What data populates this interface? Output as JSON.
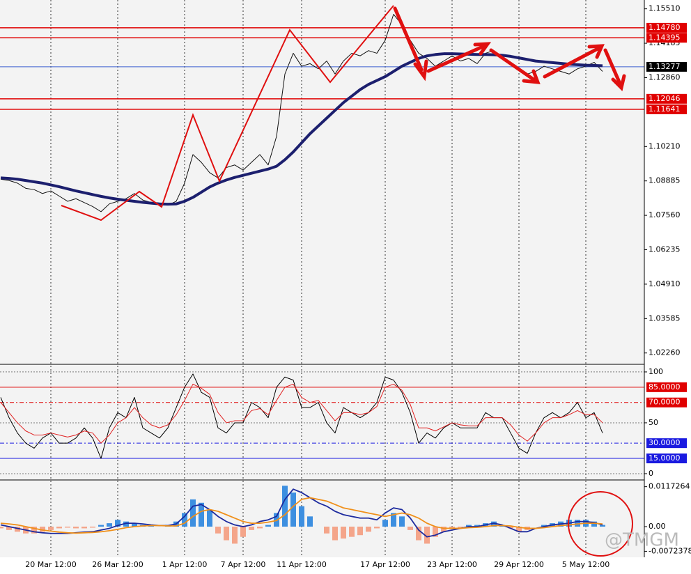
{
  "chart_data": [
    {
      "type": "line",
      "categories": [
        null,
        null,
        null,
        null,
        null,
        null,
        "20 Mar 12:00",
        null,
        null,
        null,
        null,
        null,
        null,
        null,
        "26 Mar 12:00",
        null,
        null,
        null,
        null,
        null,
        null,
        null,
        "1 Apr 12:00",
        null,
        null,
        null,
        null,
        null,
        null,
        "7 Apr 12:00",
        null,
        null,
        null,
        null,
        null,
        null,
        "11 Apr 12:00",
        null,
        null,
        null,
        null,
        null,
        null,
        null,
        null,
        null,
        "17 Apr 12:00",
        null,
        null,
        null,
        null,
        null,
        null,
        null,
        "23 Apr 12:00",
        null,
        null,
        null,
        null,
        null,
        null,
        null,
        "29 Apr 12:00",
        null,
        null,
        null,
        null,
        null,
        null,
        null,
        "5 May 12:00",
        null,
        null
      ],
      "series": [
        {
          "color": "#111111",
          "values": [
            1.0895,
            1.089,
            1.088,
            1.086,
            1.0855,
            1.084,
            1.085,
            1.083,
            1.081,
            1.082,
            1.0805,
            1.079,
            1.077,
            1.08,
            1.081,
            1.082,
            1.084,
            1.0815,
            1.0805,
            1.08,
            1.0795,
            1.081,
            1.088,
            1.099,
            1.096,
            1.092,
            1.09,
            1.094,
            1.095,
            1.093,
            1.096,
            1.099,
            1.095,
            1.106,
            1.13,
            1.138,
            1.133,
            1.134,
            1.132,
            1.135,
            1.13,
            1.135,
            1.138,
            1.137,
            1.139,
            1.138,
            1.143,
            1.153,
            1.149,
            1.143,
            1.138,
            1.136,
            1.133,
            1.135,
            1.137,
            1.135,
            1.136,
            1.134,
            1.138,
            1.139,
            1.136,
            1.134,
            1.132,
            1.13,
            1.131,
            1.133,
            1.132,
            1.131,
            1.13,
            1.132,
            1.133,
            1.1345,
            1.131
          ]
        },
        {
          "color": "#1c1f6e",
          "values": [
            1.09,
            1.0898,
            1.0895,
            1.089,
            1.0885,
            1.088,
            1.0873,
            1.0866,
            1.0858,
            1.085,
            1.0843,
            1.0836,
            1.0829,
            1.0823,
            1.0818,
            1.0814,
            1.081,
            1.0806,
            1.0803,
            1.08,
            1.0799,
            1.08,
            1.081,
            1.0825,
            1.0845,
            1.0865,
            1.088,
            1.0892,
            1.0902,
            1.091,
            1.0918,
            1.0926,
            1.0934,
            1.0945,
            1.097,
            1.1,
            1.1035,
            1.107,
            1.11,
            1.113,
            1.116,
            1.119,
            1.1215,
            1.124,
            1.126,
            1.1275,
            1.129,
            1.131,
            1.133,
            1.1345,
            1.136,
            1.137,
            1.1375,
            1.1378,
            1.1378,
            1.1377,
            1.1376,
            1.1375,
            1.1375,
            1.1374,
            1.1372,
            1.1368,
            1.1362,
            1.1356,
            1.135,
            1.1347,
            1.1344,
            1.1341,
            1.1338,
            1.1336,
            1.1334,
            1.1333,
            1.1332
          ]
        }
      ],
      "ylim": [
        1.0185,
        1.1585
      ],
      "yticks": [
        {
          "value": 1.1551,
          "label": "1.15510"
        },
        {
          "value": 1.14185,
          "label": "1.14185"
        },
        {
          "value": 1.1286,
          "label": "1.12860"
        },
        {
          "value": 1.1021,
          "label": "1.10210"
        },
        {
          "value": 1.08885,
          "label": "1.08885"
        },
        {
          "value": 1.0756,
          "label": "1.07560"
        },
        {
          "value": 1.06235,
          "label": "1.06235"
        },
        {
          "value": 1.0491,
          "label": "1.04910"
        },
        {
          "value": 1.03585,
          "label": "1.03585"
        },
        {
          "value": 1.0226,
          "label": "1.02260"
        }
      ],
      "levels": [
        {
          "value": 1.1478,
          "label": "1.14780",
          "color": "#e00000",
          "label_color": "#e00000"
        },
        {
          "value": 1.14395,
          "label": "1.14395",
          "color": "#e00000",
          "label_color": "#e00000"
        },
        {
          "value": 1.13277,
          "label": "1.13277",
          "color": "#3a5fd0",
          "label_color": "#000000"
        },
        {
          "value": 1.12046,
          "label": "1.12046",
          "color": "#e00000",
          "label_color": "#e00000"
        },
        {
          "value": 1.11641,
          "label": "1.11641",
          "color": "#e00000",
          "label_color": "#e00000"
        }
      ],
      "grid": true
    },
    {
      "type": "line",
      "series": [
        {
          "color": "#000000",
          "values": [
            75,
            55,
            40,
            30,
            25,
            35,
            40,
            30,
            30,
            35,
            45,
            35,
            15,
            45,
            60,
            55,
            75,
            45,
            40,
            35,
            45,
            65,
            85,
            98,
            80,
            75,
            45,
            40,
            50,
            50,
            70,
            65,
            55,
            85,
            95,
            92,
            65,
            65,
            70,
            50,
            40,
            65,
            60,
            55,
            60,
            70,
            95,
            92,
            80,
            60,
            30,
            40,
            35,
            45,
            50,
            45,
            45,
            45,
            60,
            55,
            55,
            40,
            25,
            20,
            40,
            55,
            60,
            55,
            60,
            70,
            55,
            60,
            40
          ]
        },
        {
          "color": "#e02020",
          "values": [
            70,
            60,
            50,
            42,
            38,
            38,
            40,
            38,
            36,
            38,
            42,
            40,
            30,
            38,
            50,
            55,
            65,
            55,
            48,
            45,
            48,
            58,
            72,
            88,
            84,
            78,
            60,
            50,
            52,
            52,
            62,
            64,
            58,
            72,
            85,
            88,
            75,
            70,
            72,
            62,
            52,
            60,
            60,
            58,
            60,
            66,
            85,
            88,
            82,
            68,
            45,
            45,
            42,
            46,
            50,
            48,
            47,
            47,
            55,
            55,
            55,
            48,
            38,
            32,
            40,
            50,
            55,
            55,
            58,
            62,
            58,
            58,
            50
          ]
        }
      ],
      "ylim": [
        -5.5,
        106.8
      ],
      "yticks": [
        100,
        50,
        0
      ],
      "levels": [
        {
          "value": 85,
          "label": "85.0000",
          "color": "#e00000",
          "label_color": "#e00000"
        },
        {
          "value": 70,
          "label": "70.0000",
          "color": "#e00000",
          "label_color": "#e00000"
        },
        {
          "value": 30,
          "label": "30.0000",
          "color": "#1a1ae0",
          "label_color": "#1a1ae0"
        },
        {
          "value": 15,
          "label": "15.0000",
          "color": "#1a1ae0",
          "label_color": "#1a1ae0"
        }
      ]
    },
    {
      "type": "macd",
      "histogram": {
        "positive_color": "#3d8fe0",
        "negative_color": "#f4a58a",
        "values": [
          -0.0005,
          -0.001,
          -0.0015,
          -0.002,
          -0.002,
          -0.0015,
          -0.001,
          -0.0005,
          -0.0003,
          -0.0005,
          -0.0005,
          -0.0003,
          0.0005,
          0.001,
          0.002,
          0.0015,
          0.001,
          0.0005,
          0.0003,
          0,
          0.0005,
          0.0015,
          0.004,
          0.008,
          0.007,
          0.005,
          -0.002,
          -0.004,
          -0.005,
          -0.003,
          -0.001,
          -0.0005,
          0.0005,
          0.004,
          0.012,
          0.01,
          0.006,
          0.003,
          0,
          -0.002,
          -0.004,
          -0.0035,
          -0.003,
          -0.0025,
          -0.0015,
          -0.0005,
          0.002,
          0.004,
          0.003,
          -0.001,
          -0.004,
          -0.005,
          -0.003,
          -0.0015,
          -0.0005,
          -0.0005,
          0.0005,
          0.0005,
          0.001,
          0.0015,
          0.0005,
          -0.0005,
          -0.0015,
          -0.001,
          0,
          0.0005,
          0.001,
          0.0015,
          0.002,
          0.002,
          0.002,
          0.0015,
          0.0005
        ]
      },
      "series": [
        {
          "color": "#1c2a9e",
          "values": [
            0.0005,
            0,
            -0.0005,
            -0.001,
            -0.0015,
            -0.0018,
            -0.002,
            -0.002,
            -0.002,
            -0.0018,
            -0.0016,
            -0.0015,
            -0.001,
            -0.0005,
            0.0003,
            0.001,
            0.001,
            0.0008,
            0.0005,
            0.0003,
            0.0003,
            0.0008,
            0.003,
            0.006,
            0.0065,
            0.005,
            0.003,
            0.0015,
            0.0005,
            0,
            0.0005,
            0.0015,
            0.002,
            0.003,
            0.008,
            0.011,
            0.01,
            0.0085,
            0.007,
            0.006,
            0.0045,
            0.0035,
            0.003,
            0.0025,
            0.0025,
            0.002,
            0.004,
            0.0055,
            0.005,
            0.0025,
            -0.001,
            -0.003,
            -0.0025,
            -0.0015,
            -0.001,
            -0.0005,
            0,
            0,
            0.0005,
            0.001,
            0.0005,
            -0.0005,
            -0.0015,
            -0.0015,
            -0.0005,
            0,
            0.0005,
            0.0008,
            0.001,
            0.0015,
            0.0015,
            0.0012,
            0.0005
          ]
        },
        {
          "color": "#f0901a",
          "values": [
            0.001,
            0.0008,
            0.0005,
            0,
            -0.0005,
            -0.001,
            -0.0013,
            -0.0016,
            -0.0018,
            -0.0019,
            -0.0018,
            -0.0017,
            -0.0015,
            -0.0012,
            -0.0008,
            -0.0003,
            0,
            0.0002,
            0.0003,
            0.0003,
            0.0002,
            0.0002,
            0.001,
            0.003,
            0.0045,
            0.005,
            0.0045,
            0.0035,
            0.0025,
            0.0015,
            0.001,
            0.001,
            0.0013,
            0.0018,
            0.0035,
            0.006,
            0.008,
            0.0085,
            0.008,
            0.0075,
            0.0065,
            0.0055,
            0.005,
            0.0045,
            0.004,
            0.0035,
            0.003,
            0.0035,
            0.004,
            0.0035,
            0.0025,
            0.001,
            0,
            -0.0005,
            -0.0005,
            -0.0005,
            -0.0003,
            -0.0002,
            0,
            0.0003,
            0.0003,
            0.0002,
            -0.0002,
            -0.0005,
            -0.0005,
            -0.0003,
            0,
            0.0003,
            0.0005,
            0.0008,
            0.001,
            0.001,
            0.0008
          ]
        }
      ],
      "ylim": [
        -0.009,
        0.0135
      ],
      "yticks": [
        0.0117264,
        {
          "value": 0,
          "label": "0.00"
        },
        -0.0072378
      ]
    }
  ],
  "watermark": "@TMGM"
}
